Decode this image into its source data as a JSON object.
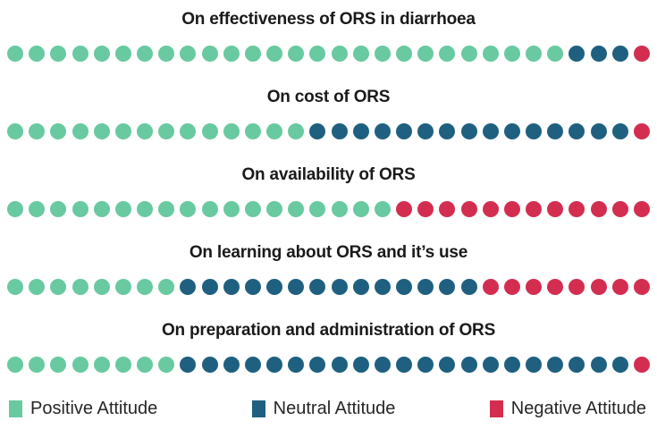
{
  "chart_data": {
    "type": "dot",
    "note": "pictograph / dot-matrix chart, 30 dots per row, stacked left-to-right",
    "dots_per_row": 30,
    "categories": [
      "On effectiveness of ORS in diarrhoea",
      "On cost of ORS",
      "On availability of ORS",
      "On learning about ORS and it’s use",
      "On preparation and administration of ORS"
    ],
    "series": [
      {
        "name": "Positive Attitude",
        "color": "#69C9A0",
        "values": [
          26,
          14,
          18,
          8,
          8
        ]
      },
      {
        "name": "Neutral Attitude",
        "color": "#1F6080",
        "values": [
          3,
          15,
          0,
          14,
          21
        ]
      },
      {
        "name": "Negative Attitude",
        "color": "#D32E50",
        "values": [
          1,
          1,
          12,
          8,
          1
        ]
      }
    ],
    "legend_position": "bottom",
    "background": "#FFFFFF",
    "title_color": "#1A1A1A"
  }
}
